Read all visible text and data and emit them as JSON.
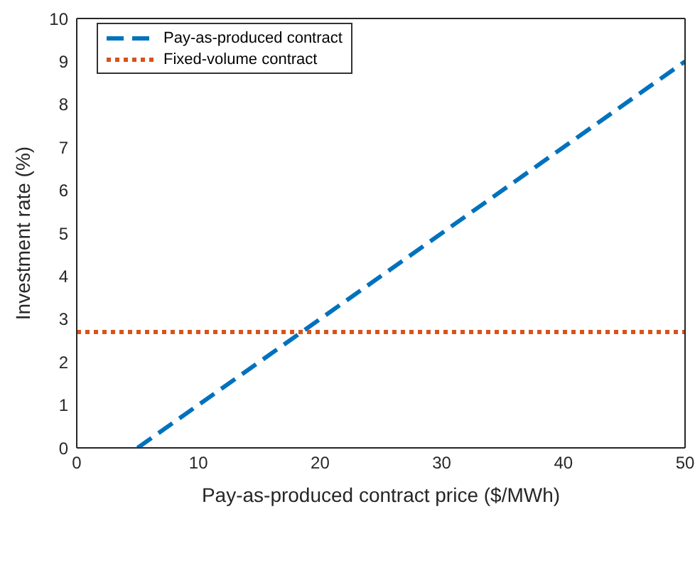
{
  "chart_data": {
    "type": "line",
    "xlabel": "Pay-as-produced contract price ($/MWh)",
    "ylabel": "Investment rate (%)",
    "xlim": [
      0,
      50
    ],
    "xticks": [
      0,
      10,
      20,
      30,
      40,
      50
    ],
    "ylim": [
      0,
      10
    ],
    "yticks": [
      0,
      1,
      2,
      3,
      4,
      5,
      6,
      7,
      8,
      9,
      10
    ],
    "legend": "top left",
    "marker": "none",
    "series": [
      {
        "name": "Pay-as-produced contract",
        "color": "#0072bd",
        "line_style": "dashed",
        "x": [
          5,
          50
        ],
        "values": [
          0,
          9
        ]
      },
      {
        "name": "Fixed-volume contract",
        "color": "#d95319",
        "line_style": "dotted",
        "x": [
          0,
          50
        ],
        "values": [
          2.7,
          2.7
        ]
      }
    ]
  }
}
